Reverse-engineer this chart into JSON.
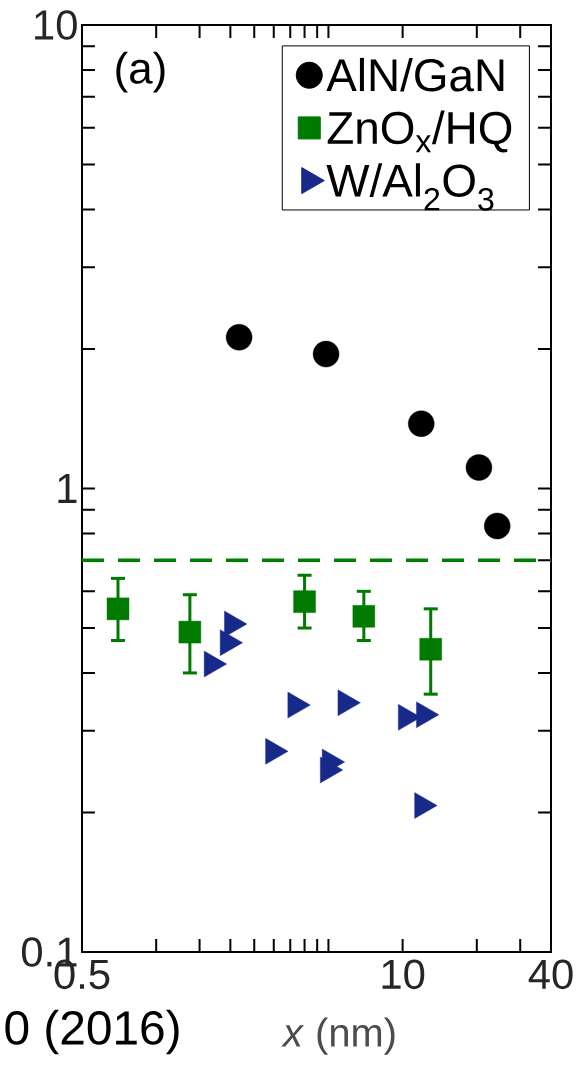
{
  "chart_data": {
    "type": "scatter",
    "xlabel": "*x* (nm)",
    "log": "xy",
    "legend": "top right",
    "xlim": [
      0.5,
      40
    ],
    "ylim": [
      0.1,
      10
    ],
    "xticks": [
      0.5,
      {
        "value": 1,
        "label": null
      },
      {
        "value": 1.5,
        "label": null
      },
      {
        "value": 2,
        "label": null
      },
      {
        "value": 2.5,
        "label": null
      },
      {
        "value": 3,
        "label": null
      },
      {
        "value": 3.5,
        "label": null
      },
      {
        "value": 4,
        "label": null
      },
      {
        "value": 4.5,
        "label": null
      },
      {
        "value": 5,
        "label": null
      },
      10,
      {
        "value": 20,
        "label": null
      },
      {
        "value": 30,
        "label": null
      },
      40
    ],
    "yticks": [
      0.1,
      {
        "value": 0.2,
        "label": null
      },
      {
        "value": 0.3,
        "label": null
      },
      {
        "value": 0.4,
        "label": null
      },
      {
        "value": 0.5,
        "label": null
      },
      {
        "value": 0.6,
        "label": null
      },
      {
        "value": 0.7,
        "label": null
      },
      {
        "value": 0.8,
        "label": null
      },
      {
        "value": 0.9,
        "label": null
      },
      1,
      {
        "value": 2,
        "label": null
      },
      {
        "value": 3,
        "label": null
      },
      {
        "value": 4,
        "label": null
      },
      {
        "value": 5,
        "label": null
      },
      {
        "value": 6,
        "label": null
      },
      {
        "value": 7,
        "label": null
      },
      {
        "value": 8,
        "label": null
      },
      {
        "value": 9,
        "label": null
      },
      10
    ],
    "series": [
      {
        "name": "AlN/GaN",
        "color": "#000000",
        "marker": "circle",
        "x": [
          2.17,
          4.89,
          11.9,
          20.4,
          24.2
        ],
        "values": [
          2.12,
          1.95,
          1.38,
          1.11,
          0.83
        ]
      },
      {
        "name": "ZnO$_{x}$/HQ",
        "color": "#007a00",
        "marker": "square",
        "x": [
          0.7,
          1.37,
          4.0,
          6.96,
          13.0
        ],
        "values": [
          0.55,
          0.49,
          0.57,
          0.53,
          0.45
        ],
        "errors": [
          [
            0.47,
            0.64
          ],
          [
            0.4,
            0.59
          ],
          [
            0.5,
            0.65
          ],
          [
            0.47,
            0.6
          ],
          [
            0.36,
            0.55
          ]
        ]
      },
      {
        "name": "W/Al$_{2}$O$_{3}$",
        "color": "#172a8a",
        "marker": "triangle",
        "x": [
          2.03,
          1.95,
          1.68,
          3.67,
          5.86,
          2.98,
          5.06,
          4.97,
          10.3,
          12.2,
          12.0
        ],
        "values": [
          0.51,
          0.465,
          0.418,
          0.341,
          0.345,
          0.271,
          0.257,
          0.247,
          0.321,
          0.325,
          0.207
        ]
      }
    ],
    "ref_lines": [
      {
        "axis": "y",
        "value": 0.7,
        "color": "#008000",
        "line_style": "dashed"
      }
    ],
    "annotations": [
      "(a)",
      "0 (2016)"
    ]
  }
}
